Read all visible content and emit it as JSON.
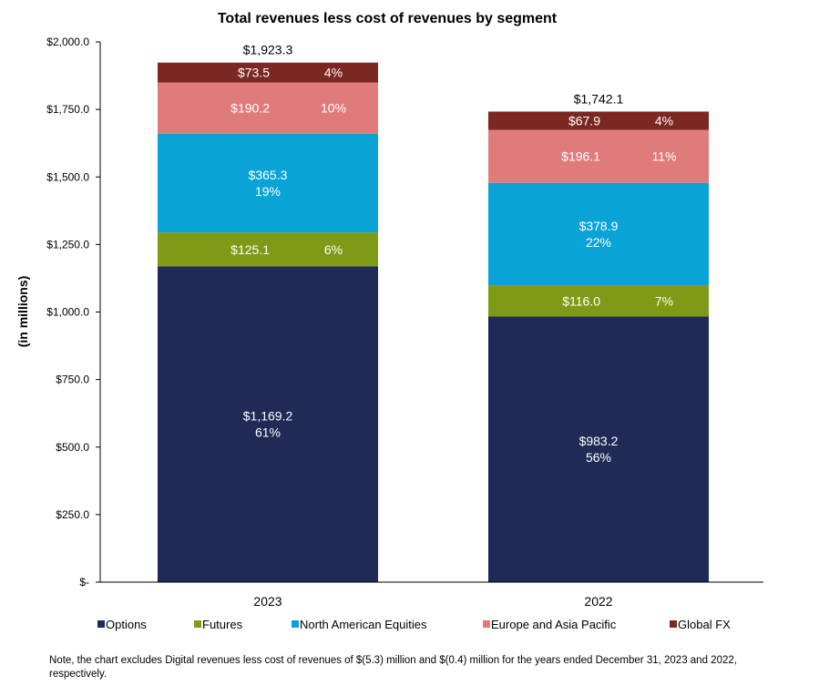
{
  "chart_data": {
    "type": "bar",
    "stacked": true,
    "title": "Total revenues less cost of revenues by segment",
    "ylabel": "(in millions)",
    "xlabel": "",
    "ylim": [
      0,
      2000
    ],
    "ytick_values": [
      0,
      250,
      500,
      750,
      1000,
      1250,
      1500,
      1750,
      2000
    ],
    "ytick_labels": [
      "$-",
      "$250.0",
      "$500.0",
      "$750.0",
      "$1,000.0",
      "$1,250.0",
      "$1,500.0",
      "$1,750.0",
      "$2,000.0"
    ],
    "categories": [
      "2023",
      "2022"
    ],
    "totals": [
      1923.3,
      1742.1
    ],
    "total_labels": [
      "$1,923.3",
      "$1,742.1"
    ],
    "series": [
      {
        "name": "Options",
        "color": "#1f2a56",
        "values": [
          1169.2,
          983.2
        ],
        "value_labels": [
          "$1,169.2",
          "$983.2"
        ],
        "pct_labels": [
          "61%",
          "56%"
        ],
        "label_layout": "stacked"
      },
      {
        "name": "Futures",
        "color": "#7f9a16",
        "values": [
          125.1,
          116.0
        ],
        "value_labels": [
          "$125.1",
          "$116.0"
        ],
        "pct_labels": [
          "6%",
          "7%"
        ],
        "label_layout": "inline"
      },
      {
        "name": "North American Equities",
        "color": "#0aa3d6",
        "values": [
          365.3,
          378.9
        ],
        "value_labels": [
          "$365.3",
          "$378.9"
        ],
        "pct_labels": [
          "19%",
          "22%"
        ],
        "label_layout": "stacked"
      },
      {
        "name": "Europe and Asia Pacific",
        "color": "#e07b7c",
        "values": [
          190.2,
          196.1
        ],
        "value_labels": [
          "$190.2",
          "$196.1"
        ],
        "pct_labels": [
          "10%",
          "11%"
        ],
        "label_layout": "inline"
      },
      {
        "name": "Global FX",
        "color": "#7b2722",
        "values": [
          73.5,
          67.9
        ],
        "value_labels": [
          "$73.5",
          "$67.9"
        ],
        "pct_labels": [
          "4%",
          "4%"
        ],
        "label_layout": "inline"
      }
    ],
    "legend_position": "bottom"
  },
  "note": "Note, the chart excludes Digital revenues less cost of revenues of $(5.3) million and $(0.4) million for the years ended December 31, 2023 and 2022, respectively."
}
